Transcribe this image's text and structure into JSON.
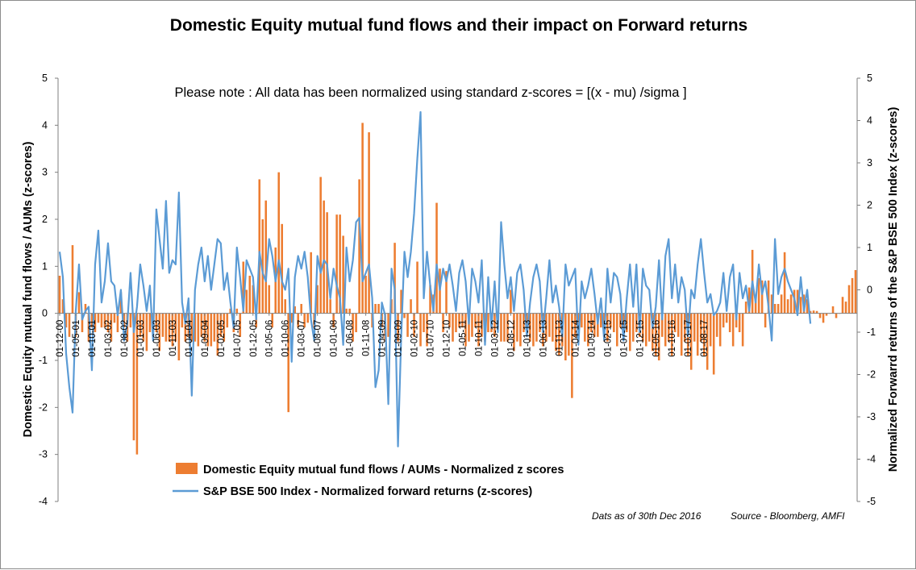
{
  "chart_data": {
    "type": "bar",
    "title": "Domestic Equity mutual fund flows and their impact on Forward returns",
    "note": "Please note : All data has been normalized using standard z-scores  =  [(x - mu) /sigma ]",
    "ylabel_left": "Domestic Equity mutual fund flows / AUMs (z-scores)",
    "ylabel_right": "Normalized Forwarrd returns of the S&P BSE  500 Index (z-scores)",
    "ylim_left": [
      -4,
      5
    ],
    "ylim_right": [
      -5,
      5
    ],
    "yticks_left": [
      "-4",
      "-3",
      "-2",
      "-1",
      "0",
      "1",
      "2",
      "3",
      "4",
      "5"
    ],
    "yticks_right": [
      "-5",
      "-4",
      "-3",
      "-2",
      "-1",
      "0",
      "1",
      "2",
      "3",
      "4",
      "5"
    ],
    "xtick_labels": [
      "01-12-00",
      "01-05-01",
      "01-10-01",
      "01-03-02",
      "01-08-02",
      "01-01-03",
      "01-06-03",
      "01-11-03",
      "01-04-04",
      "01-09-04",
      "01-02-05",
      "01-07-05",
      "01-12-05",
      "01-05-06",
      "01-10-06",
      "01-03-07",
      "01-08-07",
      "01-01-08",
      "01-06-08",
      "01-11-08",
      "01-04-09",
      "01-09-09",
      "01-02-10",
      "01-07-10",
      "01-12-10",
      "01-05-11",
      "01-10-11",
      "01-03-12",
      "01-08-12",
      "01-01-13",
      "01-06-13",
      "01-11-13",
      "01-04-14",
      "01-09-14",
      "01-02-15",
      "01-07-15",
      "01-12-15",
      "01-05-16",
      "01-10-16",
      "01-03-17",
      "01-08-17"
    ],
    "months_per_label": 5,
    "grid": false,
    "legend_position": "bottom-center",
    "colors": {
      "bars": "#ED7D31",
      "line": "#5B9BD5",
      "axis": "#7f7f7f"
    },
    "series": [
      {
        "name": "Domestic Equity mutual fund flows / AUMs - Normalized z scores",
        "type": "bar",
        "axis": "left",
        "values": [
          0.8,
          0.3,
          -0.3,
          -0.5,
          1.45,
          -0.5,
          0.45,
          -0.4,
          0.2,
          -0.6,
          -0.3,
          -0.4,
          -0.2,
          -0.3,
          -0.3,
          -0.4,
          -0.6,
          -0.2,
          -0.4,
          0.45,
          -0.3,
          -0.6,
          -0.3,
          -2.7,
          -3.0,
          -0.5,
          -0.6,
          -0.8,
          -0.4,
          -0.4,
          -0.4,
          -0.8,
          -0.5,
          -0.6,
          -0.6,
          -0.7,
          -0.6,
          -1.0,
          -0.3,
          -0.6,
          -0.5,
          -0.6,
          -0.6,
          -0.7,
          -0.5,
          -0.6,
          -0.7,
          -0.7,
          -0.6,
          -0.9,
          -0.5,
          -0.6,
          -0.3,
          0.1,
          -0.4,
          0.1,
          -0.5,
          1.1,
          0.5,
          0.8,
          0.6,
          -0.3,
          2.85,
          2.0,
          2.4,
          0.6,
          -0.3,
          1.4,
          3.0,
          1.9,
          0.3,
          -2.1,
          -0.2,
          0.15,
          -0.3,
          0.2,
          -0.3,
          -0.2,
          1.3,
          -0.3,
          0.6,
          2.9,
          2.4,
          2.15,
          0.3,
          -0.3,
          2.1,
          2.1,
          1.65,
          0.1,
          0.1,
          -0.6,
          -0.4,
          2.85,
          4.05,
          0.8,
          3.85,
          -0.3,
          0.2,
          0.2,
          -0.3,
          -0.6,
          -0.5,
          0.3,
          1.5,
          -0.6,
          0.5,
          -0.1,
          -0.5,
          0.3,
          -0.5,
          1.1,
          -0.7,
          -0.4,
          -0.7,
          0.6,
          0.4,
          2.35,
          0.95,
          -0.4,
          0.9,
          -0.3,
          -0.6,
          -0.4,
          -0.3,
          -0.3,
          -0.7,
          -0.6,
          -0.5,
          -0.3,
          -0.7,
          -0.5,
          -0.6,
          -0.4,
          -0.4,
          -0.5,
          -0.3,
          -0.6,
          -0.6,
          -0.6,
          0.5,
          -0.8,
          -0.6,
          -0.7,
          -0.4,
          -0.5,
          -0.6,
          -0.7,
          -0.6,
          -0.4,
          -0.7,
          -0.6,
          -0.5,
          -0.6,
          -0.8,
          -0.9,
          -0.7,
          -1.0,
          -0.9,
          -1.8,
          -0.5,
          -0.3,
          -0.3,
          -0.6,
          -0.7,
          -0.4,
          -0.5,
          -0.5,
          -0.3,
          -0.6,
          -0.6,
          -0.3,
          -0.4,
          -0.7,
          -0.3,
          -0.4,
          -0.4,
          -0.8,
          -0.6,
          -0.4,
          -0.5,
          -0.6,
          -0.7,
          -0.6,
          -0.8,
          -0.9,
          -1.0,
          -0.5,
          -0.7,
          -0.6,
          -0.9,
          -0.4,
          -0.5,
          -0.9,
          -0.6,
          -0.9,
          -1.2,
          -0.6,
          -0.9,
          -0.6,
          -0.9,
          -1.2,
          -0.7,
          -1.3,
          -0.5,
          -0.7,
          -0.3,
          -0.2,
          -0.4,
          -0.7,
          -0.3,
          -0.4,
          -0.7,
          0.25,
          0.55,
          1.35,
          0.3,
          0.75,
          0.7,
          -0.3,
          0.7,
          0.4,
          0.2,
          0.2,
          0.4,
          1.3,
          0.3,
          0.4,
          0.5,
          0.5,
          0.35,
          0.4,
          0.3,
          0.05,
          0.06,
          0.05,
          -0.1,
          -0.2,
          -0.05,
          0.0,
          0.15,
          -0.1,
          0.0,
          0.35,
          0.25,
          0.6,
          0.75,
          0.92
        ],
        "start": "01-12-00"
      },
      {
        "name": "S&P BSE 500  Index - Normalized forward  returns (z-scores)",
        "type": "line",
        "axis": "right",
        "values": [
          0.9,
          0.3,
          -1.5,
          -2.3,
          -2.9,
          -0.5,
          0.6,
          -0.7,
          -0.5,
          -0.4,
          -1.9,
          0.6,
          1.4,
          -0.3,
          0.2,
          1.1,
          0.2,
          0.1,
          -0.6,
          0.0,
          -1.2,
          -0.8,
          0.4,
          -1.0,
          -0.4,
          0.6,
          0.1,
          -0.5,
          0.1,
          -1.2,
          1.9,
          1.2,
          0.5,
          2.1,
          0.4,
          0.7,
          0.6,
          2.3,
          -0.3,
          -0.8,
          -0.2,
          -2.5,
          0.0,
          0.6,
          1.0,
          0.2,
          0.8,
          0.0,
          0.6,
          1.2,
          1.1,
          0.0,
          0.4,
          -0.3,
          -0.9,
          1.0,
          0.3,
          -0.5,
          0.7,
          0.5,
          0.3,
          -0.7,
          0.9,
          0.4,
          0.2,
          1.2,
          0.8,
          0.2,
          0.7,
          0.2,
          0.0,
          0.5,
          -1.7,
          0.3,
          0.8,
          0.5,
          0.9,
          0.3,
          -0.7,
          -1.2,
          0.8,
          0.4,
          0.7,
          0.6,
          -0.2,
          0.5,
          0.1,
          -0.2,
          -1.3,
          1.0,
          0.2,
          0.7,
          1.6,
          1.7,
          0.2,
          0.4,
          0.6,
          -0.2,
          -2.3,
          -1.9,
          -0.3,
          -0.6,
          -2.7,
          0.5,
          0.0,
          -3.7,
          -1.1,
          0.9,
          0.3,
          0.9,
          1.8,
          3.1,
          4.2,
          -0.2,
          0.9,
          0.1,
          -0.5,
          0.6,
          0.0,
          0.5,
          0.2,
          0.6,
          0.1,
          -0.5,
          0.4,
          0.7,
          0.2,
          -0.8,
          0.5,
          0.2,
          -0.3,
          0.7,
          -1.3,
          0.3,
          -0.9,
          0.2,
          -1.0,
          1.6,
          0.6,
          -0.2,
          0.3,
          -0.5,
          0.4,
          0.6,
          0.0,
          -1.1,
          -0.3,
          0.3,
          0.6,
          0.2,
          -1.0,
          -0.2,
          0.7,
          -0.3,
          0.1,
          -0.4,
          -1.1,
          0.6,
          0.1,
          0.3,
          0.5,
          -1.3,
          0.2,
          -0.2,
          0.1,
          0.5,
          -0.1,
          -0.8,
          -0.2,
          -1.2,
          0.5,
          -0.3,
          0.4,
          0.3,
          -0.1,
          -1.2,
          -0.2,
          0.6,
          -0.4,
          0.6,
          -1.0,
          0.5,
          0.1,
          0.0,
          -0.9,
          -0.4,
          0.7,
          -0.7,
          0.8,
          1.2,
          -0.2,
          0.6,
          -0.3,
          0.3,
          0.0,
          -1.1,
          0.0,
          -0.2,
          0.6,
          1.2,
          0.4,
          -0.3,
          -0.1,
          -0.6,
          -0.5,
          -0.3,
          0.4,
          -0.5,
          0.3,
          0.6,
          -0.7,
          0.4,
          -0.2,
          0.1,
          -0.5,
          0.2,
          -0.3,
          0.6,
          -0.1,
          0.2,
          -0.4,
          -1.2,
          1.2,
          -0.1,
          0.3,
          0.5,
          0.2,
          0.0,
          -0.2,
          -0.6,
          0.3,
          -0.5,
          0.0,
          -0.8
        ]
      }
    ]
  },
  "footer": {
    "date_note": "Dats as of 30th Dec 2016",
    "source": "Source - Bloomberg, AMFI"
  }
}
